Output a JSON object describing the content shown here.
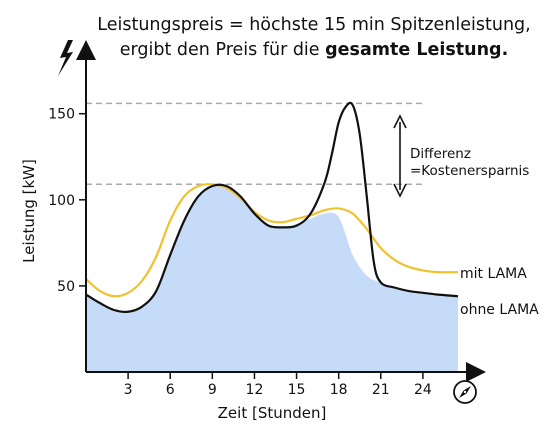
{
  "title": {
    "line1": "Leistungspreis = höchste 15 min Spitzenleistung,",
    "line2_normal": "ergibt den Preis für die ",
    "line2_bold": "gesamte Leistung."
  },
  "annotation": {
    "line1": "Differenz",
    "line2": "=Kostenersparnis"
  },
  "icons": {
    "top_left": "lightning-bolt-icon",
    "bottom_right": "compass-icon"
  },
  "colors": {
    "mit_lama": "#F2C12E",
    "ohne_lama": "#111111",
    "fill": "#C6DBF8",
    "dash": "#AAAAAA"
  },
  "chart_data": {
    "type": "line",
    "xlabel": "Zeit [Stunden]",
    "ylabel": "Leistung [kW]",
    "xlim": [
      0,
      26.5
    ],
    "ylim": [
      0,
      187
    ],
    "x_ticks": [
      3,
      6,
      9,
      12,
      15,
      18,
      21,
      24
    ],
    "y_ticks": [
      50,
      100,
      150
    ],
    "grid": false,
    "reference_lines": [
      156,
      109
    ],
    "series": [
      {
        "name": "mit LAMA",
        "x": [
          0,
          1,
          2,
          3,
          4,
          5,
          6,
          7,
          8,
          9,
          10,
          11,
          12,
          13,
          14,
          15,
          16,
          17,
          18,
          19,
          20,
          21,
          22,
          23,
          24,
          25,
          26.5
        ],
        "values": [
          54,
          47,
          44,
          46,
          53,
          67,
          88,
          102,
          108,
          109,
          107,
          101,
          93,
          88,
          87,
          89,
          91,
          94,
          95,
          92,
          83,
          72,
          65,
          61,
          59,
          58,
          58
        ]
      },
      {
        "name": "ohne LAMA",
        "x": [
          0,
          1,
          2,
          3,
          4,
          5,
          6,
          7,
          8,
          9,
          10,
          11,
          12,
          13,
          14,
          15,
          16,
          17,
          17.5,
          18,
          18.5,
          19,
          19.5,
          20,
          20.5,
          21,
          22,
          23,
          24,
          25,
          26.5
        ],
        "values": [
          45,
          40,
          36,
          35,
          38,
          47,
          68,
          88,
          102,
          108,
          108,
          102,
          92,
          85,
          84,
          85,
          92,
          110,
          126,
          145,
          154,
          155,
          138,
          102,
          64,
          52,
          49,
          47,
          46,
          45,
          44
        ]
      },
      {
        "name": "",
        "type": "area",
        "x": [
          0,
          1,
          2,
          3,
          4,
          5,
          6,
          7,
          8,
          9,
          10,
          11,
          12,
          13,
          14,
          15,
          16,
          17,
          18,
          19,
          20,
          21,
          22,
          23,
          24,
          25,
          26.5
        ],
        "values": [
          45,
          40,
          36,
          35,
          38,
          47,
          68,
          88,
          102,
          108,
          107,
          101,
          92,
          85,
          84,
          86,
          89,
          92,
          90,
          68,
          56,
          52,
          49,
          47,
          46,
          45,
          44
        ]
      }
    ]
  }
}
